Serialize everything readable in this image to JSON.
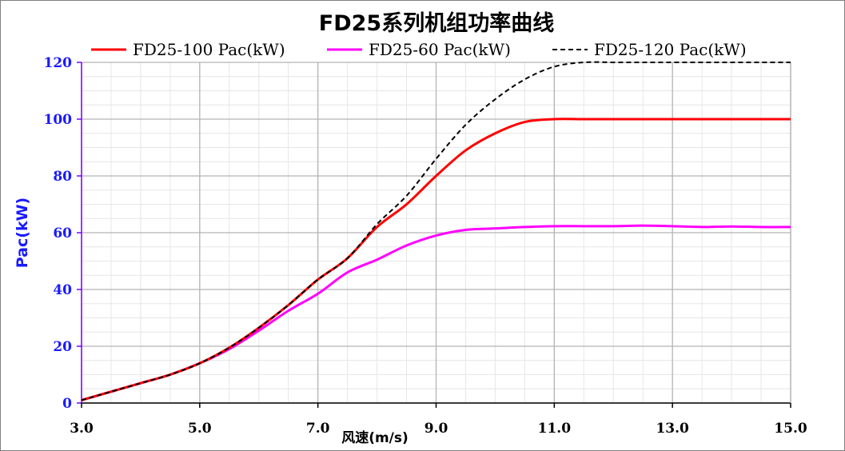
{
  "chart_data": {
    "type": "line",
    "title": "FD25系列机组功率曲线",
    "xlabel": "风速(m/s)",
    "ylabel": "Pac(kW)",
    "xlim": [
      3.0,
      15.0
    ],
    "ylim": [
      0,
      120
    ],
    "x_ticks": [
      "3.0",
      "5.0",
      "7.0",
      "9.0",
      "11.0",
      "13.0",
      "15.0"
    ],
    "y_ticks": [
      "0",
      "20",
      "40",
      "60",
      "80",
      "100",
      "120"
    ],
    "grid": true,
    "legend_position": "top",
    "x": [
      3.0,
      3.5,
      4.0,
      4.5,
      5.0,
      5.5,
      6.0,
      6.5,
      7.0,
      7.5,
      8.0,
      8.5,
      9.0,
      9.5,
      10.0,
      10.5,
      11.0,
      11.5,
      12.0,
      12.5,
      13.0,
      13.5,
      14.0,
      14.5,
      15.0
    ],
    "series": [
      {
        "name": "FD25-100 Pac(kW)",
        "color": "#ff0000",
        "dash": "solid",
        "values": [
          1,
          4,
          7,
          10,
          14,
          19.5,
          26.5,
          34.5,
          43.5,
          51,
          62,
          70,
          80,
          89,
          95,
          99,
          100,
          100,
          100,
          100,
          100,
          100,
          100,
          100,
          100
        ]
      },
      {
        "name": "FD25-60 Pac(kW)",
        "color": "#ff00ff",
        "dash": "solid",
        "values": [
          1,
          4,
          7,
          10,
          14,
          19,
          25.5,
          32.5,
          38.5,
          46,
          50.5,
          55.5,
          59,
          61,
          61.5,
          62,
          62.3,
          62.3,
          62.3,
          62.5,
          62.3,
          62,
          62.2,
          62,
          62
        ]
      },
      {
        "name": "FD25-120 Pac(kW)",
        "color": "#000000",
        "dash": "dashed",
        "values": [
          1,
          4,
          7,
          10,
          14,
          19.5,
          26.5,
          34.5,
          43.5,
          51,
          63,
          73,
          86,
          98,
          107,
          114,
          118.5,
          120,
          120,
          120,
          120,
          120,
          120,
          120,
          120
        ]
      }
    ]
  }
}
